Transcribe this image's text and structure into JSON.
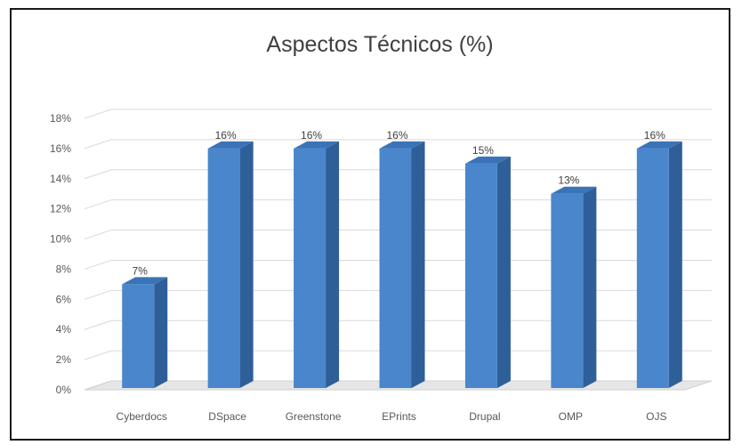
{
  "chart_data": {
    "type": "bar",
    "title": "Aspectos Técnicos (%)",
    "categories": [
      "Cyberdocs",
      "DSpace",
      "Greenstone",
      "EPrints",
      "Drupal",
      "OMP",
      "OJS"
    ],
    "values": [
      7,
      16,
      16,
      16,
      15,
      13,
      16
    ],
    "data_labels": [
      "7%",
      "16%",
      "16%",
      "16%",
      "15%",
      "13%",
      "16%"
    ],
    "y_ticks": [
      "0%",
      "2%",
      "4%",
      "6%",
      "8%",
      "10%",
      "12%",
      "14%",
      "16%",
      "18%"
    ],
    "ylim": [
      0,
      18
    ],
    "grid": true,
    "legend": "none",
    "style": "3d-column",
    "colors": {
      "bar_front": "#4a86cc",
      "bar_side": "#2e5f98",
      "bar_top": "#3b73b7",
      "grid": "#d9d9d9",
      "floor": "#d0d0d0",
      "frame": "#1a1a1a"
    }
  }
}
